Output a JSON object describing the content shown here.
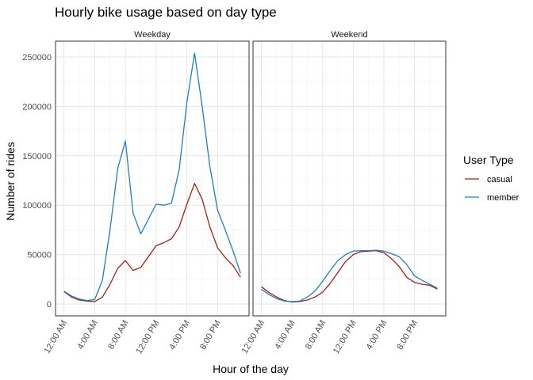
{
  "chart_data": {
    "type": "line",
    "title": "Hourly bike usage based on day type",
    "xlabel": "Hour of the day",
    "ylabel": "Number of rides",
    "legend_title": "User Type",
    "legend_position": "right",
    "grid": true,
    "ylim": [
      -12000,
      266000
    ],
    "xlim": [
      -1.1,
      24.1
    ],
    "y_ticks": [
      0,
      50000,
      100000,
      150000,
      200000,
      250000
    ],
    "y_tick_labels": [
      "0",
      "50000",
      "100000",
      "150000",
      "200000",
      "250000"
    ],
    "x_ticks": [
      0,
      4,
      8,
      12,
      16,
      20
    ],
    "x_tick_labels": [
      "12:00 AM",
      "4:00 AM",
      "8:00 AM",
      "12:00 PM",
      "4:00 PM",
      "8:00 PM"
    ],
    "x": [
      0,
      1,
      2,
      3,
      4,
      5,
      6,
      7,
      8,
      9,
      10,
      11,
      12,
      13,
      14,
      15,
      16,
      17,
      18,
      19,
      20,
      21,
      22,
      23
    ],
    "colors": {
      "casual": "#a81d12",
      "member": "#1f7fbf"
    },
    "panels": [
      {
        "label": "Weekday",
        "series": [
          {
            "name": "casual",
            "values": [
              12500,
              7000,
              4000,
              3000,
              2500,
              7000,
              20000,
              36000,
              44000,
              34000,
              37000,
              48000,
              59000,
              62000,
              66000,
              78000,
              101000,
              122000,
              106000,
              78000,
              57000,
              47000,
              39000,
              27000
            ]
          },
          {
            "name": "member",
            "values": [
              13000,
              8000,
              5000,
              3500,
              4500,
              24000,
              75000,
              137000,
              165000,
              92000,
              71000,
              86000,
              101000,
              100000,
              102000,
              136000,
              204000,
              254000,
              200000,
              139000,
              95000,
              75000,
              54000,
              31000
            ]
          }
        ]
      },
      {
        "label": "Weekend",
        "series": [
          {
            "name": "casual",
            "values": [
              17500,
              11500,
              7000,
              3500,
              2000,
              2500,
              4000,
              7000,
              12000,
              21000,
              32000,
              43000,
              50000,
              53000,
              53500,
              54000,
              52000,
              46000,
              38000,
              27000,
              22000,
              20000,
              19000,
              15000
            ]
          },
          {
            "name": "member",
            "values": [
              15000,
              9500,
              5500,
              3000,
              2500,
              3000,
              7000,
              13000,
              23000,
              34000,
              44000,
              50000,
              53500,
              54000,
              54000,
              54500,
              53500,
              51000,
              48000,
              40000,
              28500,
              24000,
              20000,
              16000
            ]
          }
        ]
      }
    ]
  }
}
